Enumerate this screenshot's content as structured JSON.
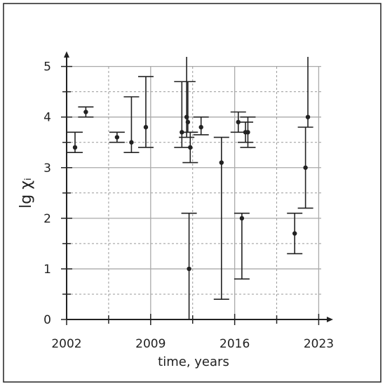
{
  "chart_data": {
    "type": "errorbar",
    "xlabel": "time, years",
    "ylabel": "lg χᵢ",
    "x": [
      2002.7,
      2003.6,
      2006.2,
      2007.4,
      2008.6,
      2011.6,
      2012.0,
      2012.1,
      2012.3,
      2012.2,
      2013.2,
      2014.9,
      2016.3,
      2016.6,
      2016.9,
      2017.1,
      2021.0,
      2021.9,
      2022.1
    ],
    "values": [
      3.4,
      4.1,
      3.6,
      3.5,
      3.8,
      3.7,
      4.0,
      3.9,
      3.4,
      1.0,
      3.8,
      3.1,
      3.9,
      2.0,
      3.7,
      3.7,
      1.7,
      3.0,
      4.0
    ],
    "lower": [
      3.3,
      4.0,
      3.5,
      3.3,
      3.4,
      3.4,
      3.6,
      3.7,
      3.1,
      0.0,
      3.65,
      0.4,
      3.7,
      0.8,
      3.5,
      3.4,
      1.3,
      2.2,
      3.8
    ],
    "upper": [
      3.7,
      4.2,
      3.7,
      4.4,
      4.8,
      4.7,
      5.3,
      4.7,
      3.7,
      2.1,
      4.0,
      3.6,
      4.1,
      2.1,
      3.9,
      4.0,
      2.1,
      3.8,
      5.3
    ],
    "capped_lower": [
      true,
      true,
      true,
      true,
      true,
      true,
      true,
      true,
      true,
      false,
      true,
      true,
      true,
      true,
      true,
      true,
      true,
      true,
      false
    ],
    "capped_upper": [
      true,
      true,
      true,
      true,
      true,
      true,
      false,
      true,
      true,
      true,
      true,
      true,
      true,
      true,
      true,
      true,
      true,
      true,
      false
    ],
    "color": "#222222",
    "xlim": [
      2002,
      2024.2
    ],
    "ylim": [
      0,
      5.3
    ],
    "xticks": [
      2002,
      2009,
      2016,
      2023
    ],
    "yticks": [
      0,
      1,
      2,
      3,
      4,
      5
    ],
    "xminor": [
      2005.5,
      2012.5,
      2019.5
    ],
    "yminor": [
      0.5,
      1.5,
      2.5,
      3.5,
      4.5
    ],
    "grid": true
  }
}
